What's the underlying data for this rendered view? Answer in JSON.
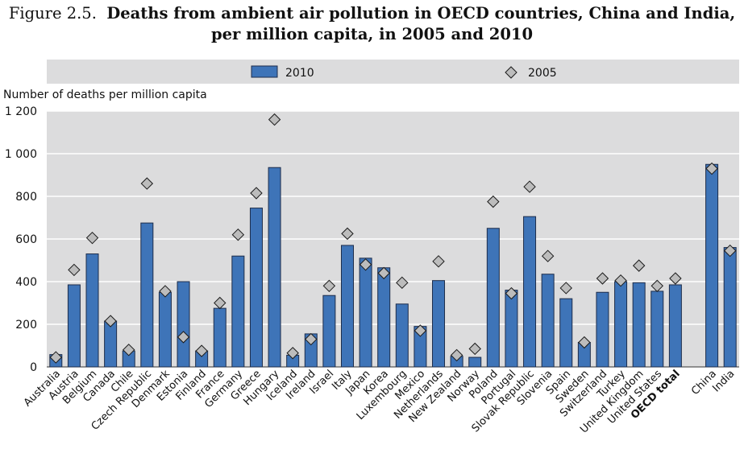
{
  "chart_data": {
    "type": "bar",
    "figure_label": "Figure 2.5.",
    "title_line1": "Deaths from ambient air pollution in OECD countries, China and India,",
    "title_line2": "per million capita, in 2005 and 2010",
    "ylabel": "Number of deaths per million capita",
    "ylim": [
      0,
      1200
    ],
    "yticks": [
      0,
      200,
      400,
      600,
      800,
      1000,
      1200
    ],
    "ytick_labels": [
      "0",
      "200",
      "400",
      "600",
      "800",
      "1 000",
      "1 200"
    ],
    "legend": {
      "bar": "2010",
      "marker": "2005"
    },
    "categories": [
      "Australia",
      "Austria",
      "Belgium",
      "Canada",
      "Chile",
      "Czech Republic",
      "Denmark",
      "Estonia",
      "Finland",
      "France",
      "Germany",
      "Greece",
      "Hungary",
      "Iceland",
      "Ireland",
      "Israel",
      "Italy",
      "Japan",
      "Korea",
      "Luxembourg",
      "Mexico",
      "Netherlands",
      "New Zealand",
      "Norway",
      "Poland",
      "Portugal",
      "Slovak Republic",
      "Slovenia",
      "Spain",
      "Sweden",
      "Switzerland",
      "Turkey",
      "United Kingdom",
      "United States",
      "OECD total",
      "",
      "China",
      "India"
    ],
    "series": [
      {
        "name": "2010",
        "style": "bar",
        "values": [
          58,
          385,
          530,
          215,
          75,
          675,
          350,
          400,
          75,
          275,
          520,
          745,
          935,
          55,
          155,
          335,
          570,
          510,
          465,
          295,
          190,
          405,
          50,
          45,
          650,
          360,
          705,
          435,
          320,
          115,
          350,
          400,
          395,
          355,
          385,
          null,
          950,
          560
        ]
      },
      {
        "name": "2005",
        "style": "diamond",
        "values": [
          45,
          455,
          605,
          215,
          80,
          860,
          355,
          140,
          75,
          300,
          620,
          815,
          1160,
          65,
          130,
          380,
          625,
          480,
          440,
          395,
          170,
          495,
          55,
          85,
          775,
          345,
          845,
          520,
          370,
          115,
          415,
          405,
          475,
          380,
          415,
          null,
          930,
          545
        ]
      }
    ],
    "colors": {
      "bar_fill": "#3e74b8",
      "bar_stroke": "#1e2d4a",
      "marker_fill": "#bcbcbc",
      "marker_stroke": "#1a1a1a",
      "plot_bg": "#dcdcdd",
      "grid": "#ffffff"
    }
  }
}
